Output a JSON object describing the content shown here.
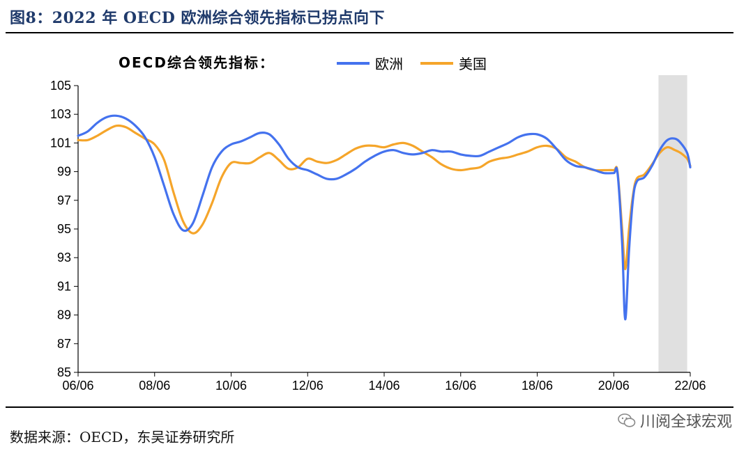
{
  "header": {
    "title": "图8：2022 年 OECD 欧洲综合领先指标已拐点向下"
  },
  "footer": {
    "source": "数据来源：OECD，东吴证券研究所",
    "watermark": "川阅全球宏观"
  },
  "colors": {
    "europe": "#4472ee",
    "us": "#f5a52a",
    "shade": "#e0e0e0"
  },
  "chart_data": {
    "type": "line",
    "legend_title": "OECD综合领先指标：",
    "legend_position": "top",
    "x_range": [
      2006.5,
      2022.5
    ],
    "ylim": [
      85,
      105
    ],
    "y_ticks": [
      85,
      87,
      89,
      91,
      93,
      95,
      97,
      99,
      101,
      103,
      105
    ],
    "x_ticks": [
      {
        "label": "06/06",
        "value": 2006.5
      },
      {
        "label": "08/06",
        "value": 2008.5
      },
      {
        "label": "10/06",
        "value": 2010.5
      },
      {
        "label": "12/06",
        "value": 2012.5
      },
      {
        "label": "14/06",
        "value": 2014.5
      },
      {
        "label": "16/06",
        "value": 2016.5
      },
      {
        "label": "18/06",
        "value": 2018.5
      },
      {
        "label": "20/06",
        "value": 2020.5
      },
      {
        "label": "22/06",
        "value": 2022.5
      }
    ],
    "shaded_range": [
      2021.67,
      2022.42
    ],
    "series": [
      {
        "name": "欧洲",
        "color": "#4472ee",
        "points": [
          [
            2006.5,
            101.5
          ],
          [
            2006.75,
            101.8
          ],
          [
            2007.0,
            102.4
          ],
          [
            2007.25,
            102.8
          ],
          [
            2007.5,
            102.9
          ],
          [
            2007.75,
            102.7
          ],
          [
            2008.0,
            102.2
          ],
          [
            2008.25,
            101.4
          ],
          [
            2008.5,
            100.0
          ],
          [
            2008.75,
            98.0
          ],
          [
            2009.0,
            96.0
          ],
          [
            2009.25,
            94.9
          ],
          [
            2009.5,
            95.4
          ],
          [
            2009.75,
            97.3
          ],
          [
            2010.0,
            99.3
          ],
          [
            2010.25,
            100.4
          ],
          [
            2010.5,
            100.9
          ],
          [
            2010.75,
            101.1
          ],
          [
            2011.0,
            101.4
          ],
          [
            2011.25,
            101.7
          ],
          [
            2011.5,
            101.6
          ],
          [
            2011.75,
            100.9
          ],
          [
            2012.0,
            99.9
          ],
          [
            2012.25,
            99.3
          ],
          [
            2012.5,
            99.1
          ],
          [
            2012.75,
            98.8
          ],
          [
            2013.0,
            98.5
          ],
          [
            2013.25,
            98.5
          ],
          [
            2013.5,
            98.8
          ],
          [
            2013.75,
            99.2
          ],
          [
            2014.0,
            99.7
          ],
          [
            2014.25,
            100.1
          ],
          [
            2014.5,
            100.4
          ],
          [
            2014.75,
            100.5
          ],
          [
            2015.0,
            100.3
          ],
          [
            2015.25,
            100.2
          ],
          [
            2015.5,
            100.3
          ],
          [
            2015.75,
            100.5
          ],
          [
            2016.0,
            100.4
          ],
          [
            2016.25,
            100.4
          ],
          [
            2016.5,
            100.2
          ],
          [
            2016.75,
            100.1
          ],
          [
            2017.0,
            100.1
          ],
          [
            2017.25,
            100.4
          ],
          [
            2017.5,
            100.7
          ],
          [
            2017.75,
            101.0
          ],
          [
            2018.0,
            101.4
          ],
          [
            2018.25,
            101.6
          ],
          [
            2018.5,
            101.6
          ],
          [
            2018.75,
            101.3
          ],
          [
            2019.0,
            100.6
          ],
          [
            2019.25,
            99.8
          ],
          [
            2019.5,
            99.4
          ],
          [
            2019.75,
            99.3
          ],
          [
            2020.0,
            99.1
          ],
          [
            2020.25,
            98.9
          ],
          [
            2020.5,
            98.9
          ],
          [
            2020.6,
            98.9
          ],
          [
            2020.72,
            94.0
          ],
          [
            2020.8,
            88.7
          ],
          [
            2020.9,
            93.5
          ],
          [
            2021.0,
            97.0
          ],
          [
            2021.1,
            98.3
          ],
          [
            2021.3,
            98.6
          ],
          [
            2021.5,
            99.4
          ],
          [
            2021.7,
            100.5
          ],
          [
            2021.9,
            101.2
          ],
          [
            2022.1,
            101.3
          ],
          [
            2022.25,
            101.0
          ],
          [
            2022.42,
            100.3
          ],
          [
            2022.5,
            99.3
          ]
        ]
      },
      {
        "name": "美国",
        "color": "#f5a52a",
        "points": [
          [
            2006.5,
            101.2
          ],
          [
            2006.75,
            101.2
          ],
          [
            2007.0,
            101.5
          ],
          [
            2007.25,
            101.9
          ],
          [
            2007.5,
            102.2
          ],
          [
            2007.75,
            102.1
          ],
          [
            2008.0,
            101.7
          ],
          [
            2008.25,
            101.3
          ],
          [
            2008.5,
            100.9
          ],
          [
            2008.75,
            99.8
          ],
          [
            2009.0,
            97.5
          ],
          [
            2009.25,
            95.5
          ],
          [
            2009.5,
            94.7
          ],
          [
            2009.75,
            95.3
          ],
          [
            2010.0,
            96.8
          ],
          [
            2010.25,
            98.6
          ],
          [
            2010.5,
            99.6
          ],
          [
            2010.75,
            99.6
          ],
          [
            2011.0,
            99.6
          ],
          [
            2011.25,
            100.0
          ],
          [
            2011.5,
            100.3
          ],
          [
            2011.75,
            99.8
          ],
          [
            2012.0,
            99.2
          ],
          [
            2012.25,
            99.3
          ],
          [
            2012.5,
            99.9
          ],
          [
            2012.75,
            99.7
          ],
          [
            2013.0,
            99.6
          ],
          [
            2013.25,
            99.8
          ],
          [
            2013.5,
            100.2
          ],
          [
            2013.75,
            100.6
          ],
          [
            2014.0,
            100.8
          ],
          [
            2014.25,
            100.8
          ],
          [
            2014.5,
            100.7
          ],
          [
            2014.75,
            100.9
          ],
          [
            2015.0,
            101.0
          ],
          [
            2015.25,
            100.8
          ],
          [
            2015.5,
            100.4
          ],
          [
            2015.75,
            100.0
          ],
          [
            2016.0,
            99.5
          ],
          [
            2016.25,
            99.2
          ],
          [
            2016.5,
            99.1
          ],
          [
            2016.75,
            99.2
          ],
          [
            2017.0,
            99.3
          ],
          [
            2017.25,
            99.7
          ],
          [
            2017.5,
            99.9
          ],
          [
            2017.75,
            100.0
          ],
          [
            2018.0,
            100.2
          ],
          [
            2018.25,
            100.4
          ],
          [
            2018.5,
            100.7
          ],
          [
            2018.75,
            100.8
          ],
          [
            2019.0,
            100.6
          ],
          [
            2019.25,
            100.0
          ],
          [
            2019.5,
            99.7
          ],
          [
            2019.75,
            99.3
          ],
          [
            2020.0,
            99.1
          ],
          [
            2020.25,
            99.1
          ],
          [
            2020.5,
            99.1
          ],
          [
            2020.6,
            99.0
          ],
          [
            2020.72,
            95.0
          ],
          [
            2020.8,
            92.2
          ],
          [
            2020.9,
            95.0
          ],
          [
            2021.0,
            97.3
          ],
          [
            2021.1,
            98.5
          ],
          [
            2021.3,
            98.8
          ],
          [
            2021.5,
            99.5
          ],
          [
            2021.7,
            100.3
          ],
          [
            2021.9,
            100.7
          ],
          [
            2022.1,
            100.5
          ],
          [
            2022.25,
            100.3
          ],
          [
            2022.42,
            99.9
          ],
          [
            2022.5,
            99.4
          ]
        ]
      }
    ]
  }
}
